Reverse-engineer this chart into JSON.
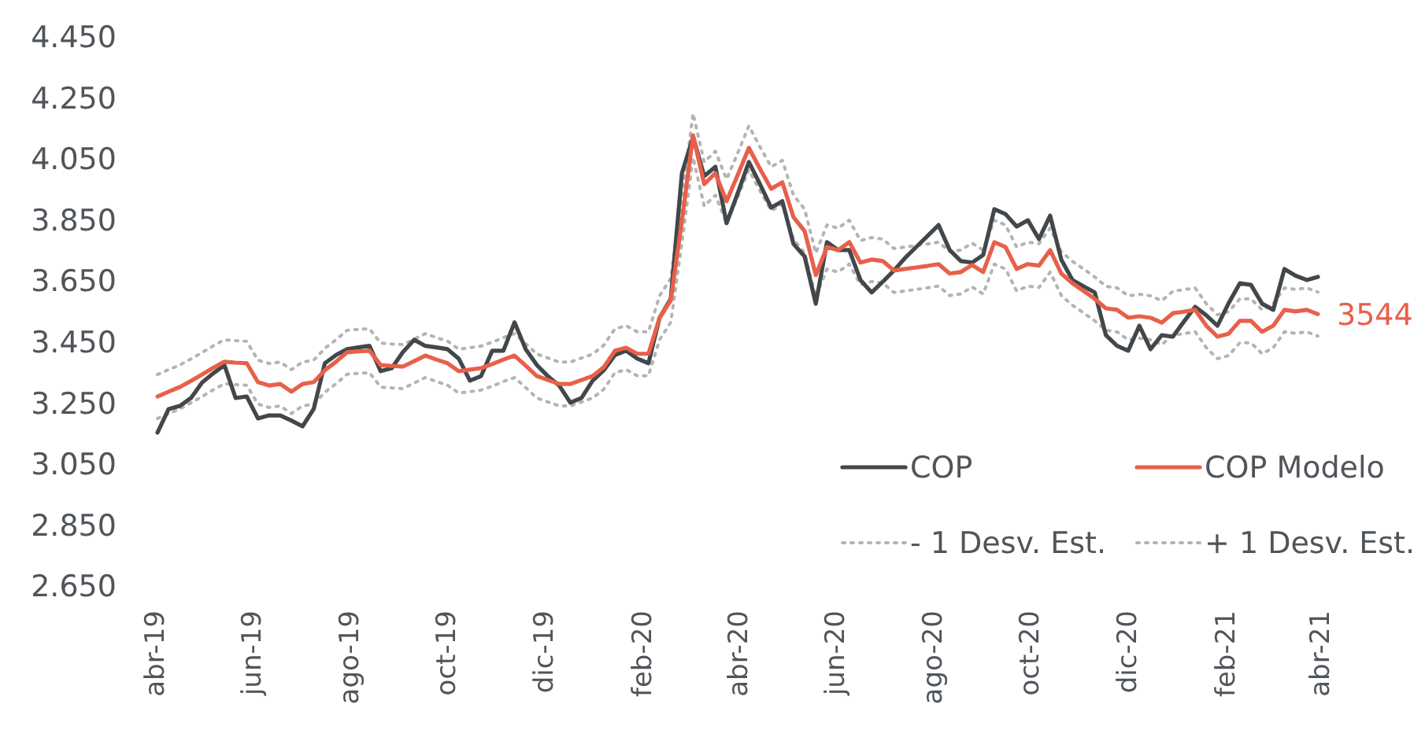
{
  "chart_data": {
    "type": "line",
    "x": [
      "2019-04-03",
      "2019-04-10",
      "2019-04-17",
      "2019-04-24",
      "2019-05-01",
      "2019-05-08",
      "2019-05-15",
      "2019-05-22",
      "2019-05-29",
      "2019-06-05",
      "2019-06-12",
      "2019-06-19",
      "2019-06-26",
      "2019-07-03",
      "2019-07-10",
      "2019-07-17",
      "2019-07-24",
      "2019-07-31",
      "2019-08-07",
      "2019-08-14",
      "2019-08-21",
      "2019-08-28",
      "2019-09-04",
      "2019-09-11",
      "2019-09-18",
      "2019-09-25",
      "2019-10-02",
      "2019-10-09",
      "2019-10-16",
      "2019-10-23",
      "2019-10-30",
      "2019-11-06",
      "2019-11-13",
      "2019-11-20",
      "2019-11-27",
      "2019-12-04",
      "2019-12-11",
      "2019-12-18",
      "2019-12-25",
      "2020-01-01",
      "2020-01-08",
      "2020-01-15",
      "2020-01-22",
      "2020-01-29",
      "2020-02-05",
      "2020-02-12",
      "2020-02-19",
      "2020-02-26",
      "2020-03-04",
      "2020-03-11",
      "2020-03-18",
      "2020-03-25",
      "2020-04-01",
      "2020-04-08",
      "2020-04-15",
      "2020-04-22",
      "2020-04-29",
      "2020-05-06",
      "2020-05-13",
      "2020-05-20",
      "2020-05-27",
      "2020-06-03",
      "2020-06-10",
      "2020-06-17",
      "2020-06-24",
      "2020-07-01",
      "2020-07-08",
      "2020-07-15",
      "2020-07-22",
      "2020-07-29",
      "2020-08-05",
      "2020-08-12",
      "2020-08-19",
      "2020-08-26",
      "2020-09-02",
      "2020-09-09",
      "2020-09-16",
      "2020-09-23",
      "2020-09-30",
      "2020-10-07",
      "2020-10-14",
      "2020-10-21",
      "2020-10-28",
      "2020-11-04",
      "2020-11-11",
      "2020-11-18",
      "2020-11-25",
      "2020-12-02",
      "2020-12-09",
      "2020-12-16",
      "2020-12-23",
      "2020-12-30",
      "2021-01-06",
      "2021-01-13",
      "2021-01-20",
      "2021-01-27",
      "2021-02-03",
      "2021-02-10",
      "2021-02-17",
      "2021-02-24",
      "2021-03-03",
      "2021-03-10",
      "2021-03-17",
      "2021-03-24",
      "2021-03-31"
    ],
    "series": [
      {
        "name": "COP",
        "color": "#42474b",
        "values": [
          3156,
          3233,
          3243,
          3269,
          3320,
          3350,
          3377,
          3269,
          3274,
          3202,
          3212,
          3212,
          3195,
          3176,
          3233,
          3383,
          3410,
          3429,
          3435,
          3440,
          3357,
          3367,
          3420,
          3460,
          3440,
          3435,
          3429,
          3398,
          3326,
          3341,
          3424,
          3424,
          3517,
          3429,
          3377,
          3340,
          3310,
          3254,
          3269,
          3326,
          3360,
          3410,
          3424,
          3398,
          3383,
          3532,
          3594,
          4006,
          4125,
          3996,
          4027,
          3842,
          3940,
          4043,
          3970,
          3893,
          3914,
          3774,
          3733,
          3578,
          3780,
          3754,
          3754,
          3656,
          3615,
          3650,
          3687,
          3728,
          3764,
          3800,
          3836,
          3754,
          3718,
          3713,
          3738,
          3888,
          3872,
          3831,
          3852,
          3790,
          3867,
          3723,
          3656,
          3635,
          3615,
          3475,
          3440,
          3424,
          3506,
          3429,
          3475,
          3470,
          3520,
          3568,
          3540,
          3506,
          3580,
          3645,
          3640,
          3578,
          3558,
          3692,
          3670,
          3656,
          3666
        ]
      },
      {
        "name": "COP Modelo",
        "color": "#e8604a",
        "values": [
          3274,
          3290,
          3305,
          3325,
          3346,
          3368,
          3388,
          3385,
          3383,
          3321,
          3310,
          3315,
          3290,
          3315,
          3321,
          3360,
          3388,
          3419,
          3422,
          3424,
          3377,
          3374,
          3372,
          3390,
          3408,
          3395,
          3383,
          3357,
          3362,
          3367,
          3380,
          3395,
          3408,
          3375,
          3341,
          3328,
          3315,
          3315,
          3328,
          3341,
          3370,
          3424,
          3434,
          3414,
          3414,
          3532,
          3589,
          3850,
          4130,
          3970,
          4006,
          3914,
          4000,
          4089,
          4020,
          3955,
          3976,
          3862,
          3816,
          3672,
          3764,
          3754,
          3780,
          3713,
          3723,
          3718,
          3687,
          3692,
          3697,
          3702,
          3708,
          3677,
          3682,
          3705,
          3682,
          3780,
          3764,
          3692,
          3708,
          3703,
          3754,
          3677,
          3645,
          3620,
          3594,
          3563,
          3558,
          3532,
          3537,
          3532,
          3516,
          3547,
          3552,
          3558,
          3506,
          3470,
          3480,
          3522,
          3522,
          3486,
          3506,
          3558,
          3553,
          3558,
          3544
        ]
      },
      {
        "name": "- 1 Desv. Est.",
        "color": "#b4b4b4",
        "line_style": "dotted",
        "values": [
          3202,
          3218,
          3233,
          3253,
          3274,
          3296,
          3316,
          3313,
          3311,
          3249,
          3238,
          3243,
          3218,
          3243,
          3249,
          3288,
          3316,
          3347,
          3350,
          3352,
          3305,
          3302,
          3300,
          3318,
          3336,
          3323,
          3311,
          3285,
          3290,
          3295,
          3308,
          3323,
          3336,
          3303,
          3269,
          3256,
          3243,
          3243,
          3256,
          3269,
          3298,
          3352,
          3362,
          3342,
          3342,
          3460,
          3517,
          3778,
          4058,
          3898,
          3934,
          3842,
          3928,
          4017,
          3948,
          3883,
          3904,
          3790,
          3744,
          3600,
          3692,
          3682,
          3708,
          3641,
          3651,
          3646,
          3615,
          3620,
          3625,
          3630,
          3636,
          3605,
          3610,
          3633,
          3610,
          3708,
          3692,
          3620,
          3636,
          3631,
          3682,
          3605,
          3573,
          3548,
          3522,
          3491,
          3486,
          3460,
          3465,
          3460,
          3444,
          3475,
          3480,
          3486,
          3434,
          3398,
          3408,
          3450,
          3450,
          3414,
          3434,
          3486,
          3481,
          3486,
          3472
        ]
      },
      {
        "name": "+ 1 Desv. Est.",
        "color": "#b4b4b4",
        "line_style": "dotted",
        "values": [
          3346,
          3362,
          3377,
          3397,
          3418,
          3440,
          3460,
          3457,
          3455,
          3393,
          3382,
          3387,
          3362,
          3387,
          3393,
          3432,
          3460,
          3491,
          3494,
          3496,
          3449,
          3446,
          3444,
          3462,
          3480,
          3467,
          3455,
          3429,
          3434,
          3439,
          3452,
          3467,
          3480,
          3447,
          3413,
          3400,
          3387,
          3387,
          3400,
          3413,
          3442,
          3496,
          3506,
          3486,
          3486,
          3604,
          3661,
          3922,
          4202,
          4042,
          4078,
          3986,
          4072,
          4161,
          4092,
          4027,
          4048,
          3934,
          3888,
          3744,
          3836,
          3826,
          3852,
          3785,
          3795,
          3790,
          3759,
          3764,
          3769,
          3774,
          3780,
          3749,
          3754,
          3777,
          3754,
          3852,
          3836,
          3764,
          3780,
          3775,
          3826,
          3749,
          3717,
          3692,
          3666,
          3635,
          3630,
          3604,
          3609,
          3604,
          3588,
          3619,
          3624,
          3630,
          3578,
          3542,
          3552,
          3594,
          3594,
          3558,
          3578,
          3630,
          3625,
          3630,
          3616
        ]
      }
    ],
    "xlim": [
      "2019-04-01",
      "2021-04-01"
    ],
    "xticks": [
      {
        "value": "2019-04-01",
        "label": "abr-19"
      },
      {
        "value": "2019-06-01",
        "label": "jun-19"
      },
      {
        "value": "2019-08-01",
        "label": "ago-19"
      },
      {
        "value": "2019-10-01",
        "label": "oct-19"
      },
      {
        "value": "2019-12-01",
        "label": "dic-19"
      },
      {
        "value": "2020-02-01",
        "label": "feb-20"
      },
      {
        "value": "2020-04-01",
        "label": "abr-20"
      },
      {
        "value": "2020-06-01",
        "label": "jun-20"
      },
      {
        "value": "2020-08-01",
        "label": "ago-20"
      },
      {
        "value": "2020-10-01",
        "label": "oct-20"
      },
      {
        "value": "2020-12-01",
        "label": "dic-20"
      },
      {
        "value": "2021-02-01",
        "label": "feb-21"
      },
      {
        "value": "2021-04-01",
        "label": "abr-21"
      }
    ],
    "ylim": [
      2650,
      4450
    ],
    "yticks": [
      {
        "value": 2650,
        "label": "2.650"
      },
      {
        "value": 2850,
        "label": "2.850"
      },
      {
        "value": 3050,
        "label": "3.050"
      },
      {
        "value": 3250,
        "label": "3.250"
      },
      {
        "value": 3450,
        "label": "3.450"
      },
      {
        "value": 3650,
        "label": "3.650"
      },
      {
        "value": 3850,
        "label": "3.850"
      },
      {
        "value": 4050,
        "label": "4.050"
      },
      {
        "value": 4250,
        "label": "4.250"
      },
      {
        "value": 4450,
        "label": "4.450"
      }
    ],
    "annotations": [
      {
        "text": "3544",
        "x": "2021-03-31",
        "y": 3544
      }
    ],
    "legend": "bottom right",
    "grid": false,
    "marker": "none"
  }
}
